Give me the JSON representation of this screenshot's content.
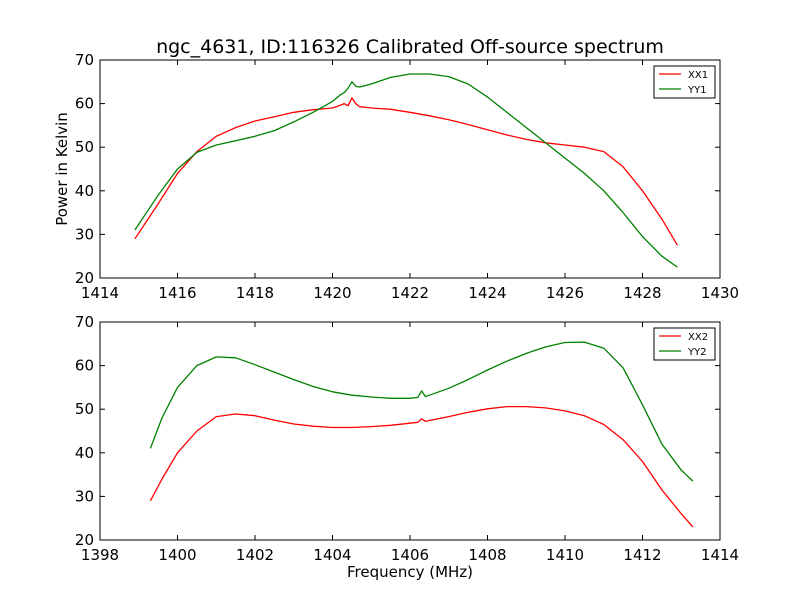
{
  "chart_data": [
    {
      "type": "line",
      "title": "ngc_4631, ID:116326 Calibrated Off-source spectrum",
      "xlabel": "",
      "ylabel": "Power in Kelvin",
      "xlim": [
        1414,
        1430
      ],
      "ylim": [
        20,
        70
      ],
      "xticks": [
        1414,
        1416,
        1418,
        1420,
        1422,
        1424,
        1426,
        1428,
        1430
      ],
      "yticks": [
        20,
        30,
        40,
        50,
        60,
        70
      ],
      "grid": false,
      "legend": "top-right",
      "series": [
        {
          "name": "XX1",
          "color": "#ff0000",
          "x": [
            1414.9,
            1415.5,
            1416.0,
            1416.5,
            1417.0,
            1417.5,
            1418.0,
            1418.5,
            1419.0,
            1419.5,
            1420.0,
            1420.2,
            1420.3,
            1420.4,
            1420.5,
            1420.6,
            1420.7,
            1421.0,
            1421.5,
            1422.0,
            1422.5,
            1423.0,
            1423.5,
            1424.0,
            1424.5,
            1425.0,
            1425.5,
            1426.0,
            1426.5,
            1427.0,
            1427.5,
            1428.0,
            1428.5,
            1428.9
          ],
          "y": [
            29.0,
            37.0,
            44.0,
            49.0,
            52.5,
            54.5,
            56.0,
            57.0,
            58.0,
            58.6,
            59.0,
            59.6,
            60.0,
            59.5,
            61.3,
            60.0,
            59.3,
            59.0,
            58.7,
            58.0,
            57.2,
            56.3,
            55.2,
            54.0,
            52.8,
            51.8,
            51.0,
            50.5,
            50.0,
            49.0,
            45.5,
            40.0,
            33.5,
            27.5
          ]
        },
        {
          "name": "YY1",
          "color": "#008000",
          "x": [
            1414.9,
            1415.5,
            1416.0,
            1416.5,
            1417.0,
            1417.5,
            1418.0,
            1418.5,
            1419.0,
            1419.5,
            1420.0,
            1420.2,
            1420.3,
            1420.4,
            1420.5,
            1420.6,
            1420.7,
            1421.0,
            1421.5,
            1422.0,
            1422.5,
            1423.0,
            1423.5,
            1424.0,
            1424.5,
            1425.0,
            1425.5,
            1426.0,
            1426.5,
            1427.0,
            1427.5,
            1428.0,
            1428.5,
            1428.9
          ],
          "y": [
            31.0,
            39.0,
            45.0,
            48.8,
            50.5,
            51.5,
            52.5,
            53.8,
            55.8,
            58.0,
            60.5,
            62.0,
            62.5,
            63.5,
            65.0,
            64.0,
            63.8,
            64.5,
            66.0,
            66.8,
            66.8,
            66.2,
            64.5,
            61.5,
            58.0,
            54.5,
            51.0,
            47.5,
            44.0,
            40.0,
            35.0,
            29.5,
            25.0,
            22.5
          ]
        }
      ]
    },
    {
      "type": "line",
      "title": "",
      "xlabel": "Frequency (MHz)",
      "ylabel": "",
      "xlim": [
        1398,
        1414
      ],
      "ylim": [
        20,
        70
      ],
      "xticks": [
        1398,
        1400,
        1402,
        1404,
        1406,
        1408,
        1410,
        1412,
        1414
      ],
      "yticks": [
        20,
        30,
        40,
        50,
        60,
        70
      ],
      "grid": false,
      "legend": "top-right",
      "series": [
        {
          "name": "XX2",
          "color": "#ff0000",
          "x": [
            1399.3,
            1399.6,
            1400.0,
            1400.5,
            1401.0,
            1401.5,
            1402.0,
            1402.5,
            1403.0,
            1403.5,
            1404.0,
            1404.5,
            1405.0,
            1405.5,
            1406.0,
            1406.2,
            1406.3,
            1406.4,
            1406.5,
            1407.0,
            1407.5,
            1408.0,
            1408.5,
            1409.0,
            1409.5,
            1410.0,
            1410.5,
            1411.0,
            1411.5,
            1412.0,
            1412.5,
            1413.0,
            1413.3
          ],
          "y": [
            29.0,
            34.0,
            40.0,
            45.0,
            48.3,
            48.9,
            48.5,
            47.5,
            46.6,
            46.1,
            45.8,
            45.8,
            46.0,
            46.3,
            46.8,
            47.0,
            47.8,
            47.2,
            47.4,
            48.3,
            49.3,
            50.1,
            50.6,
            50.6,
            50.3,
            49.6,
            48.5,
            46.5,
            43.0,
            38.0,
            31.5,
            26.0,
            23.0
          ]
        },
        {
          "name": "YY2",
          "color": "#008000",
          "x": [
            1399.3,
            1399.6,
            1400.0,
            1400.5,
            1401.0,
            1401.5,
            1402.0,
            1402.5,
            1403.0,
            1403.5,
            1404.0,
            1404.5,
            1405.0,
            1405.5,
            1406.0,
            1406.2,
            1406.3,
            1406.4,
            1406.5,
            1407.0,
            1407.5,
            1408.0,
            1408.5,
            1409.0,
            1409.5,
            1410.0,
            1410.5,
            1411.0,
            1411.5,
            1412.0,
            1412.5,
            1413.0,
            1413.3
          ],
          "y": [
            41.0,
            48.0,
            55.0,
            60.0,
            62.0,
            61.8,
            60.2,
            58.5,
            56.8,
            55.2,
            54.0,
            53.2,
            52.8,
            52.5,
            52.5,
            52.7,
            54.2,
            52.9,
            53.2,
            54.8,
            56.8,
            59.0,
            61.0,
            62.8,
            64.3,
            65.3,
            65.4,
            64.0,
            59.5,
            51.0,
            42.0,
            36.0,
            33.5
          ]
        }
      ]
    }
  ]
}
